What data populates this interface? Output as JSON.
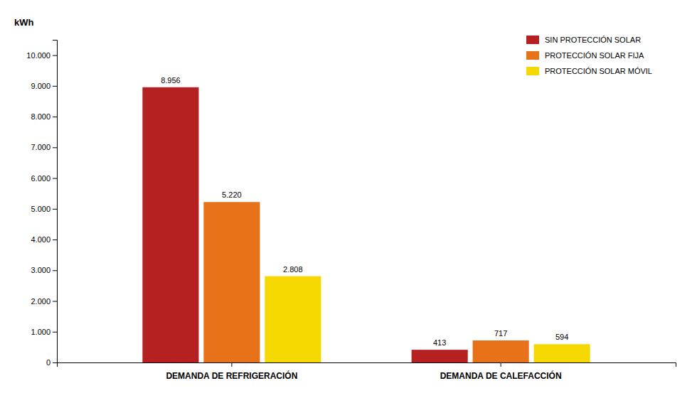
{
  "chart_data": {
    "type": "bar",
    "ylabel": "kWh",
    "categories": [
      "DEMANDA DE REFRIGERACIÓN",
      "DEMANDA DE CALEFACCIÓN"
    ],
    "series": [
      {
        "name": "SIN PROTECCIÓN SOLAR",
        "color": "#B52020",
        "values": [
          8956,
          413
        ],
        "value_labels": [
          "8.956",
          "413"
        ]
      },
      {
        "name": "PROTECCIÓN SOLAR FIJA",
        "color": "#E8721A",
        "values": [
          5220,
          717
        ],
        "value_labels": [
          "5.220",
          "717"
        ]
      },
      {
        "name": "PROTECCIÓN SOLAR MÓVIL",
        "color": "#F5D800",
        "values": [
          2808,
          594
        ],
        "value_labels": [
          "2.808",
          "594"
        ]
      }
    ],
    "ylim": [
      0,
      10500
    ],
    "yticks": [
      0,
      {
        "value": 1000,
        "label": "1.000"
      },
      {
        "value": 2000,
        "label": "2.000"
      },
      {
        "value": 3000,
        "label": "3.000"
      },
      {
        "value": 4000,
        "label": "4.000"
      },
      {
        "value": 5000,
        "label": "5.000"
      },
      {
        "value": 6000,
        "label": "6.000"
      },
      {
        "value": 7000,
        "label": "7.000"
      },
      {
        "value": 8000,
        "label": "8.000"
      },
      {
        "value": 9000,
        "label": "9.000"
      },
      {
        "value": 10000,
        "label": "10.000"
      }
    ],
    "grid": false,
    "legend": "upper right",
    "data_labels": true
  }
}
